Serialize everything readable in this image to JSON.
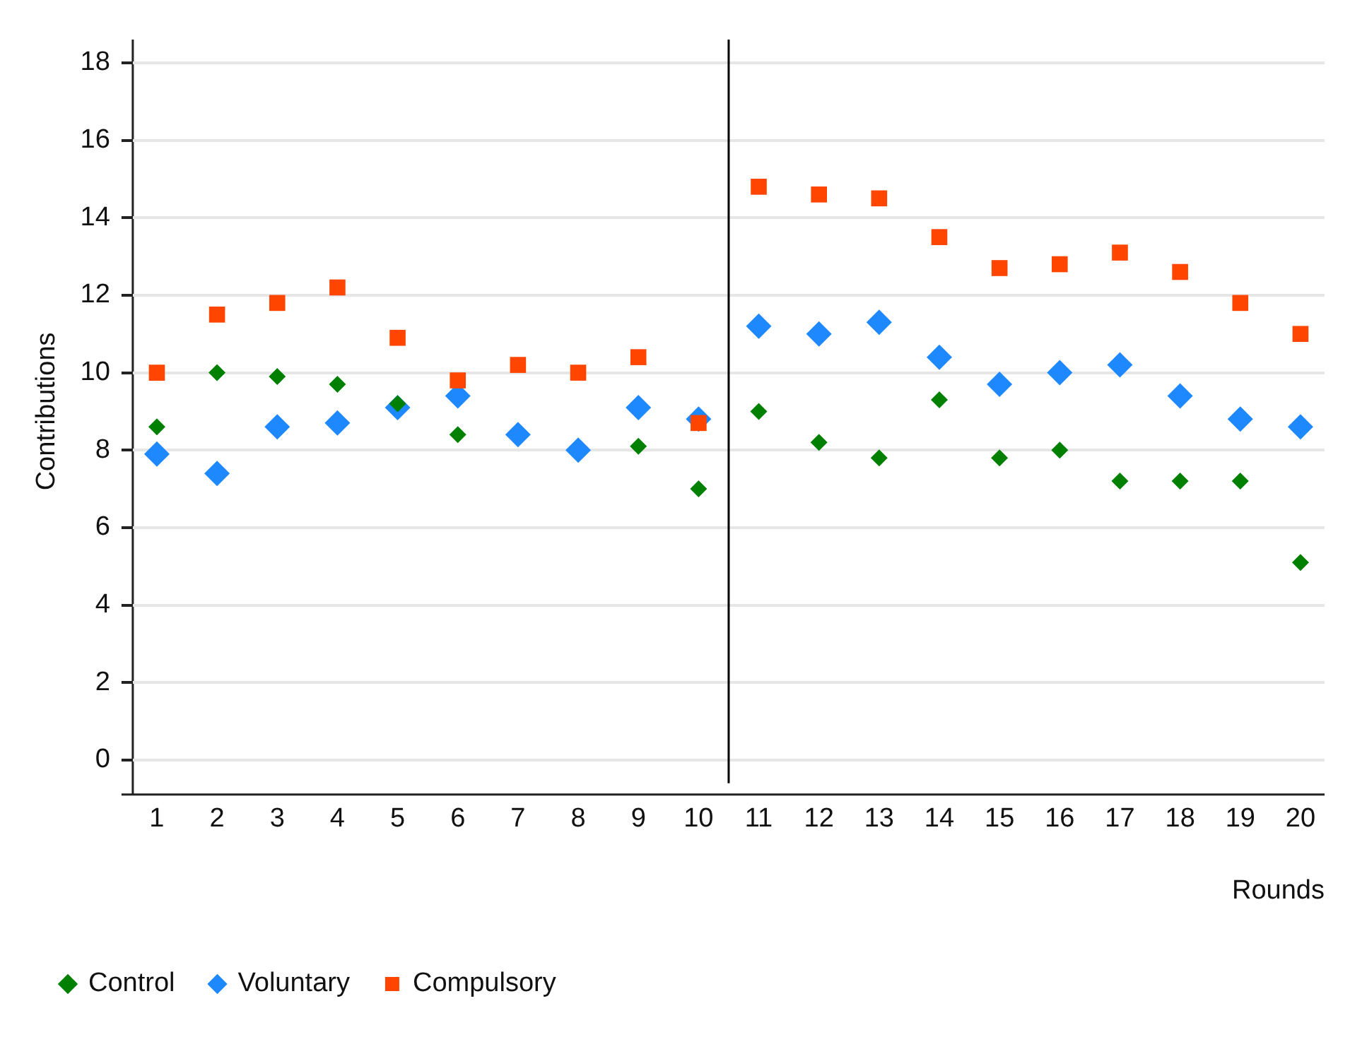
{
  "chart_data": {
    "type": "scatter",
    "xlabel": "Rounds",
    "ylabel": "Contributions",
    "x": [
      1,
      2,
      3,
      4,
      5,
      6,
      7,
      8,
      9,
      10,
      11,
      12,
      13,
      14,
      15,
      16,
      17,
      18,
      19,
      20
    ],
    "series": [
      {
        "name": "Control",
        "color": "#008000",
        "marker": "diamond",
        "values": [
          8.6,
          10.0,
          9.9,
          9.7,
          9.2,
          8.4,
          null,
          null,
          8.1,
          7.0,
          9.0,
          8.2,
          7.8,
          9.3,
          7.8,
          8.0,
          7.2,
          7.2,
          7.2,
          5.1
        ]
      },
      {
        "name": "Voluntary",
        "color": "#1e88ff",
        "marker": "diamond",
        "values": [
          7.9,
          7.4,
          8.6,
          8.7,
          9.1,
          9.4,
          8.4,
          8.0,
          9.1,
          8.8,
          11.2,
          11.0,
          11.3,
          10.4,
          9.7,
          10.0,
          10.2,
          9.4,
          8.8,
          8.6
        ]
      },
      {
        "name": "Compulsory",
        "color": "#ff4500",
        "marker": "square",
        "values": [
          10.0,
          11.5,
          11.8,
          12.2,
          10.9,
          9.8,
          10.2,
          10.0,
          10.4,
          8.7,
          14.8,
          14.6,
          14.5,
          13.5,
          12.7,
          12.8,
          13.1,
          12.6,
          11.8,
          11.0
        ]
      }
    ],
    "xlim": [
      0.6,
      20.4
    ],
    "xticks": [
      1,
      2,
      3,
      4,
      5,
      6,
      7,
      8,
      9,
      10,
      11,
      12,
      13,
      14,
      15,
      16,
      17,
      18,
      19,
      20
    ],
    "ylim": [
      -0.6,
      18.6
    ],
    "yticks": [
      0,
      2,
      4,
      6,
      8,
      10,
      12,
      14,
      16,
      18
    ],
    "ref_lines": [
      {
        "axis": "x",
        "value": 10.5,
        "color": "#000000"
      }
    ],
    "grid": "y",
    "legend": "bottom"
  }
}
